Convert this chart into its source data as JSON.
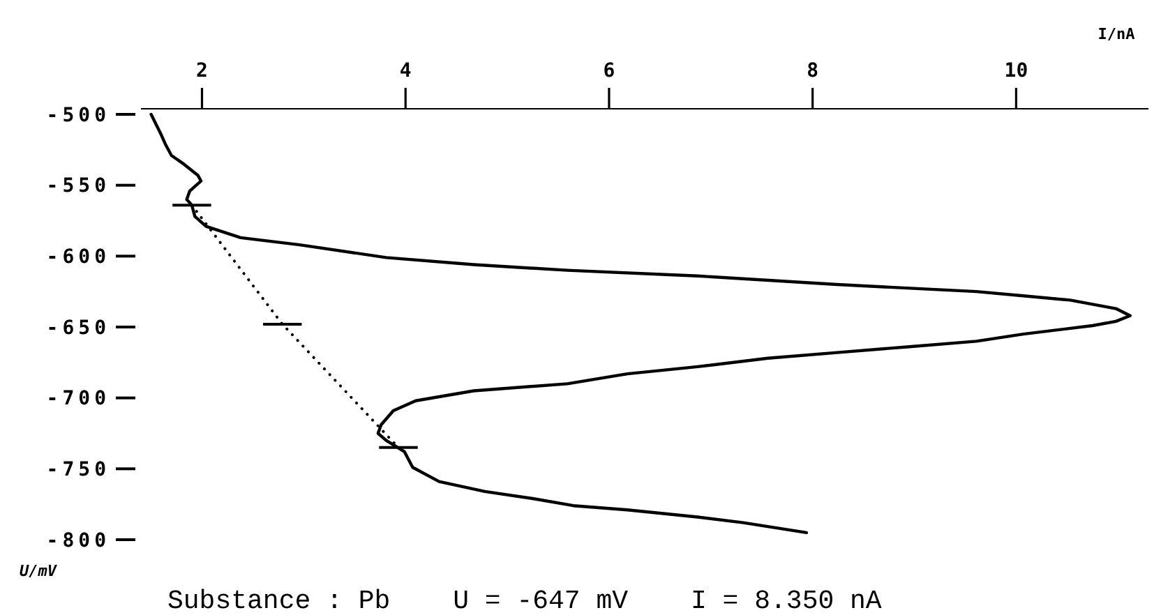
{
  "chart_data": {
    "type": "line",
    "xlabel": "I/nA",
    "ylabel": "U/mV",
    "xlim": [
      1.4,
      11.3
    ],
    "xticks": [
      2,
      4,
      6,
      8,
      10
    ],
    "ylim": [
      -800,
      -500
    ],
    "yticks": [
      -500,
      -550,
      -600,
      -650,
      -700,
      -750,
      -800
    ],
    "annotations": [
      "Substance : Pb",
      "U = -647 mV",
      "I = 8.350 nA"
    ],
    "series": [
      {
        "color": "#000000",
        "line_style": "solid",
        "x": [
          1.5,
          1.59,
          1.64,
          1.7,
          1.82,
          1.96,
          1.99,
          1.88,
          1.85,
          1.9,
          1.93,
          2.04,
          2.38,
          2.96,
          3.81,
          4.67,
          5.59,
          6.87,
          8.24,
          9.61,
          10.07,
          10.53,
          10.98,
          11.12,
          10.98,
          10.75,
          10.07,
          9.61,
          8.93,
          8.24,
          7.56,
          6.87,
          6.18,
          5.59,
          4.67,
          4.1,
          3.88,
          3.76,
          3.73,
          3.81,
          3.99,
          4.07,
          4.33,
          4.78,
          5.25,
          5.65,
          6.18,
          6.87,
          7.32,
          7.94
        ],
        "values": [
          -500,
          -513,
          -521,
          -529,
          -535,
          -543,
          -547,
          -554,
          -560,
          -564,
          -572,
          -579,
          -587,
          -592,
          -601,
          -606,
          -610,
          -614,
          -620,
          -625,
          -628,
          -631,
          -637,
          -642,
          -646,
          -649,
          -655,
          -660,
          -664,
          -668,
          -672,
          -678,
          -683,
          -690,
          -695,
          -702,
          -709,
          -719,
          -725,
          -730,
          -738,
          -749,
          -759,
          -766,
          -771,
          -776,
          -779,
          -784,
          -788,
          -795
        ]
      },
      {
        "color": "#000000",
        "line_style": "dotted",
        "x": [
          1.9,
          2.79,
          3.93
        ],
        "values": [
          -564,
          -648,
          -735
        ],
        "xerrors": [
          0.19,
          0.19,
          0.19
        ]
      }
    ]
  }
}
